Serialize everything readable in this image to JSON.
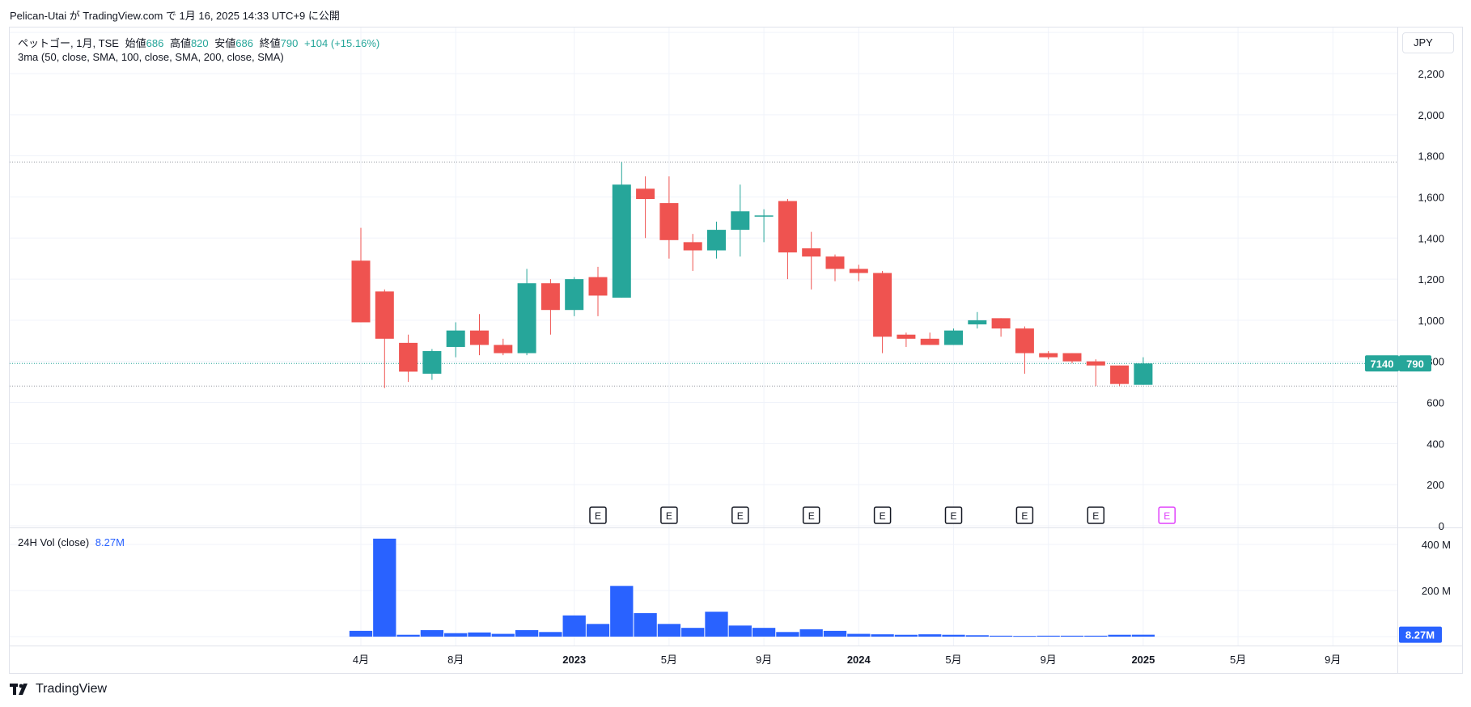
{
  "header": {
    "publish_line": "Pelican-Utai が TradingView.com で 1月 16, 2025 14:33 UTC+9 に公開"
  },
  "legend": {
    "symbol": "ペットゴー, 1月, TSE",
    "open_label": "始値",
    "open_value": "686",
    "high_label": "高値",
    "high_value": "820",
    "low_label": "安値",
    "low_value": "686",
    "close_label": "終値",
    "close_value": "790",
    "change": "+104 (+15.16%)",
    "indicator": "3ma (50, close, SMA, 100, close, SMA, 200, close, SMA)"
  },
  "volume_legend": {
    "label": "24H Vol (close)",
    "value": "8.27M"
  },
  "currency": "JPY",
  "price_tags": {
    "code": "7140",
    "price": "790",
    "volume": "8.27M"
  },
  "brand": {
    "name": "TradingView"
  },
  "colors": {
    "up": "#26a69a",
    "down": "#ef5350",
    "volume": "#2962ff",
    "earnings_past": "#131722",
    "earnings_future": "#e040fb",
    "grid": "#f0f3fa"
  },
  "chart_data": {
    "type": "candlestick",
    "title": "ペットゴー, 1月, TSE",
    "price_axis": {
      "ylim": [
        0,
        2380
      ],
      "ticks": [
        0,
        200,
        400,
        600,
        800,
        1000,
        1200,
        1400,
        1600,
        1800,
        2000,
        2200
      ],
      "tick_labels": [
        "0",
        "200",
        "400",
        "600",
        "800",
        "1,000",
        "1,200",
        "1,400",
        "1,600",
        "1,800",
        "2,000",
        "2,200"
      ]
    },
    "time_axis": {
      "labels": [
        {
          "text": "4月",
          "index": 0,
          "bold": false
        },
        {
          "text": "8月",
          "index": 4,
          "bold": false
        },
        {
          "text": "2023",
          "index": 9,
          "bold": true
        },
        {
          "text": "5月",
          "index": 13,
          "bold": false
        },
        {
          "text": "9月",
          "index": 17,
          "bold": false
        },
        {
          "text": "2024",
          "index": 21,
          "bold": true
        },
        {
          "text": "5月",
          "index": 25,
          "bold": false
        },
        {
          "text": "9月",
          "index": 29,
          "bold": false
        },
        {
          "text": "2025",
          "index": 33,
          "bold": true
        },
        {
          "text": "5月",
          "index": 37,
          "bold": false
        },
        {
          "text": "9月",
          "index": 41,
          "bold": false
        }
      ]
    },
    "candles": [
      {
        "o": 1290,
        "h": 1450,
        "l": 990,
        "c": 990
      },
      {
        "o": 1140,
        "h": 1150,
        "l": 670,
        "c": 910
      },
      {
        "o": 890,
        "h": 930,
        "l": 700,
        "c": 750
      },
      {
        "o": 740,
        "h": 860,
        "l": 710,
        "c": 850
      },
      {
        "o": 870,
        "h": 990,
        "l": 820,
        "c": 950
      },
      {
        "o": 950,
        "h": 1030,
        "l": 830,
        "c": 880
      },
      {
        "o": 880,
        "h": 910,
        "l": 830,
        "c": 840
      },
      {
        "o": 840,
        "h": 1250,
        "l": 830,
        "c": 1180
      },
      {
        "o": 1180,
        "h": 1200,
        "l": 930,
        "c": 1050
      },
      {
        "o": 1050,
        "h": 1210,
        "l": 1020,
        "c": 1200
      },
      {
        "o": 1210,
        "h": 1260,
        "l": 1020,
        "c": 1120
      },
      {
        "o": 1110,
        "h": 1770,
        "l": 1110,
        "c": 1660
      },
      {
        "o": 1640,
        "h": 1700,
        "l": 1400,
        "c": 1590
      },
      {
        "o": 1570,
        "h": 1700,
        "l": 1300,
        "c": 1390
      },
      {
        "o": 1380,
        "h": 1420,
        "l": 1240,
        "c": 1340
      },
      {
        "o": 1340,
        "h": 1480,
        "l": 1300,
        "c": 1440
      },
      {
        "o": 1440,
        "h": 1660,
        "l": 1310,
        "c": 1530
      },
      {
        "o": 1510,
        "h": 1540,
        "l": 1380,
        "c": 1510
      },
      {
        "o": 1580,
        "h": 1590,
        "l": 1200,
        "c": 1330
      },
      {
        "o": 1350,
        "h": 1430,
        "l": 1150,
        "c": 1310
      },
      {
        "o": 1310,
        "h": 1320,
        "l": 1190,
        "c": 1250
      },
      {
        "o": 1250,
        "h": 1270,
        "l": 1190,
        "c": 1230
      },
      {
        "o": 1230,
        "h": 1240,
        "l": 840,
        "c": 920
      },
      {
        "o": 930,
        "h": 940,
        "l": 870,
        "c": 910
      },
      {
        "o": 910,
        "h": 940,
        "l": 880,
        "c": 880
      },
      {
        "o": 880,
        "h": 960,
        "l": 880,
        "c": 950
      },
      {
        "o": 980,
        "h": 1040,
        "l": 960,
        "c": 1000
      },
      {
        "o": 1010,
        "h": 1010,
        "l": 920,
        "c": 960
      },
      {
        "o": 960,
        "h": 970,
        "l": 740,
        "c": 840
      },
      {
        "o": 840,
        "h": 850,
        "l": 810,
        "c": 820
      },
      {
        "o": 840,
        "h": 840,
        "l": 790,
        "c": 800
      },
      {
        "o": 800,
        "h": 810,
        "l": 680,
        "c": 780
      },
      {
        "o": 780,
        "h": 780,
        "l": 680,
        "c": 690
      },
      {
        "o": 686,
        "h": 820,
        "l": 686,
        "c": 790
      }
    ],
    "horizontal_lines": [
      1770,
      790,
      680
    ],
    "earnings_markers": [
      {
        "index": 10,
        "label": "E",
        "future": false
      },
      {
        "index": 13,
        "label": "E",
        "future": false
      },
      {
        "index": 16,
        "label": "E",
        "future": false
      },
      {
        "index": 19,
        "label": "E",
        "future": false
      },
      {
        "index": 22,
        "label": "E",
        "future": false
      },
      {
        "index": 25,
        "label": "E",
        "future": false
      },
      {
        "index": 28,
        "label": "E",
        "future": false
      },
      {
        "index": 31,
        "label": "E",
        "future": false
      },
      {
        "index": 34,
        "label": "E",
        "future": true
      }
    ],
    "volume": {
      "ylim": [
        0,
        460
      ],
      "unit": "M",
      "ticks": [
        200,
        400
      ],
      "tick_labels": [
        "200 M",
        "400 M"
      ],
      "values": [
        25,
        425,
        8,
        28,
        15,
        18,
        12,
        28,
        20,
        92,
        55,
        220,
        102,
        55,
        38,
        108,
        48,
        38,
        20,
        32,
        25,
        12,
        10,
        8,
        10,
        8,
        6,
        4,
        3,
        4,
        4,
        4,
        8,
        8.27
      ]
    }
  }
}
